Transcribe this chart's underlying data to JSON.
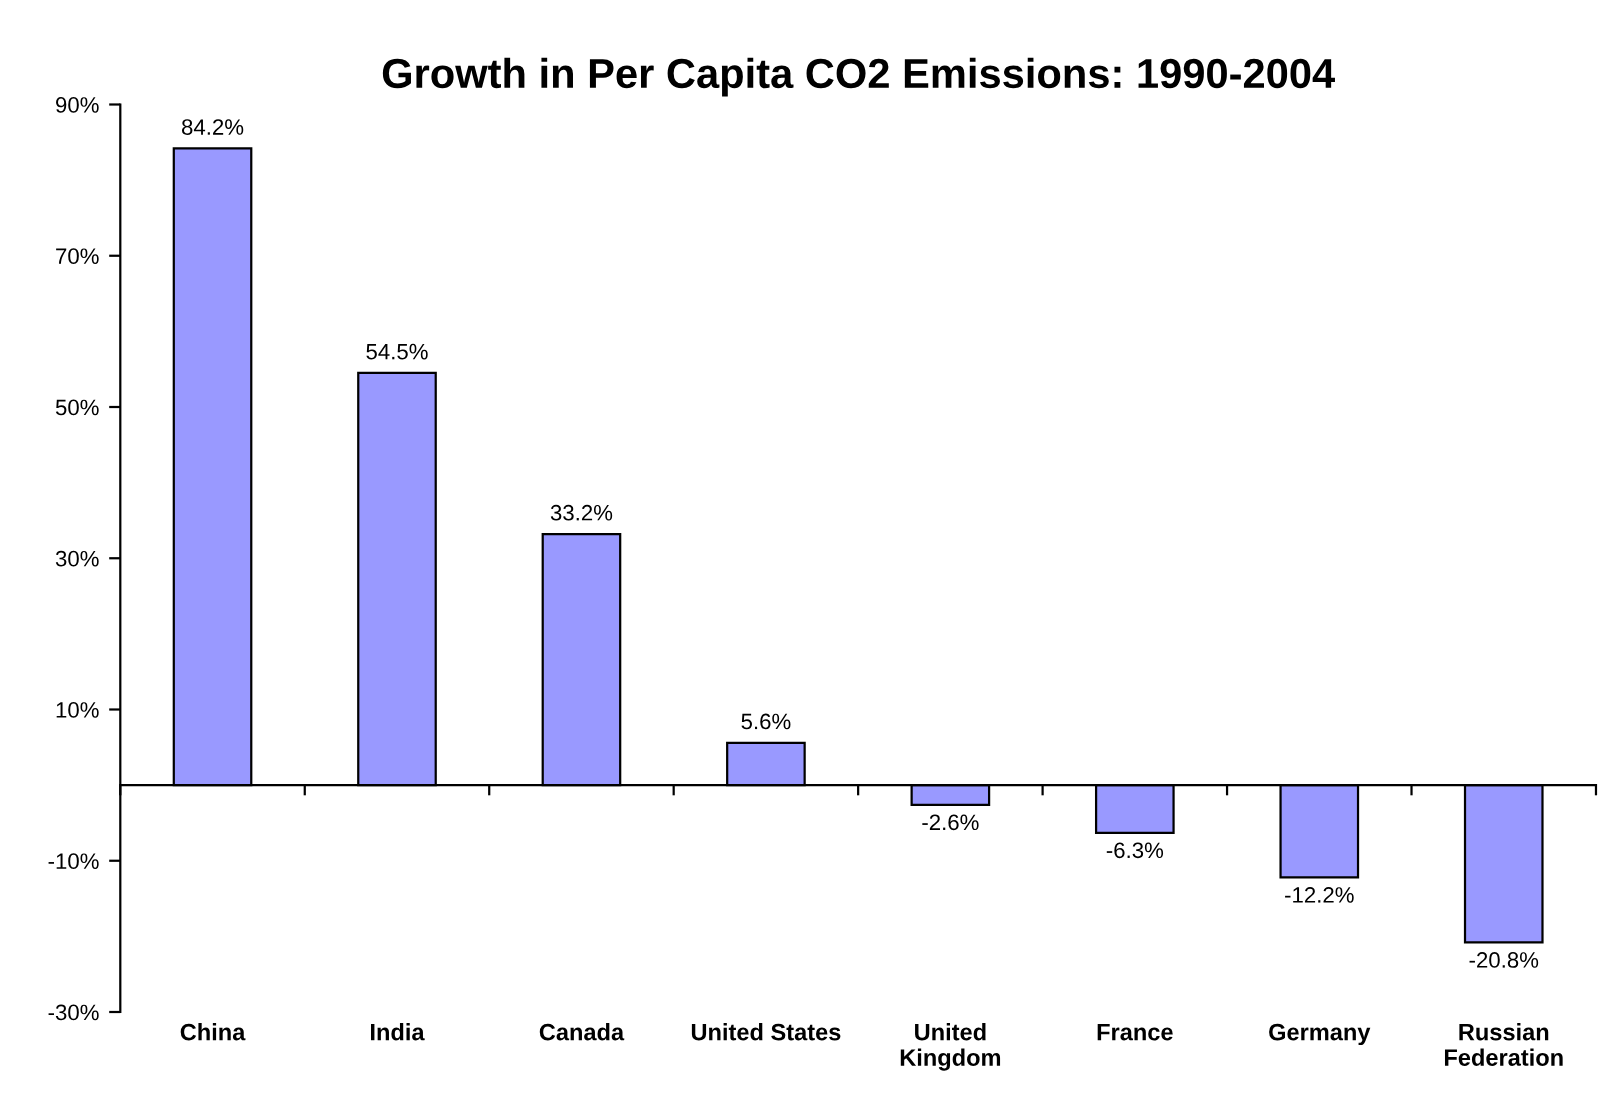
{
  "chart_data": {
    "type": "bar",
    "title": "Growth in Per Capita CO2 Emissions: 1990-2004",
    "categories": [
      "China",
      "India",
      "Canada",
      "United States",
      "United\nKingdom",
      "France",
      "Germany",
      "Russian\nFederation"
    ],
    "values": [
      84.2,
      54.5,
      33.2,
      5.6,
      -2.6,
      -6.3,
      -12.2,
      -20.8
    ],
    "value_labels": [
      "84.2%",
      "54.5%",
      "33.2%",
      "5.6%",
      "-2.6%",
      "-6.3%",
      "-12.2%",
      "-20.8%"
    ],
    "color": "#9999ff",
    "ylim": [
      -30,
      90
    ],
    "yticks": [
      {
        "value": -30,
        "label": "-30%"
      },
      {
        "value": -10,
        "label": "-10%"
      },
      {
        "value": 10,
        "label": "10%"
      },
      {
        "value": 30,
        "label": "30%"
      },
      {
        "value": 50,
        "label": "50%"
      },
      {
        "value": 70,
        "label": "70%"
      },
      {
        "value": 90,
        "label": "90%"
      }
    ],
    "grid": false,
    "legend": false
  }
}
